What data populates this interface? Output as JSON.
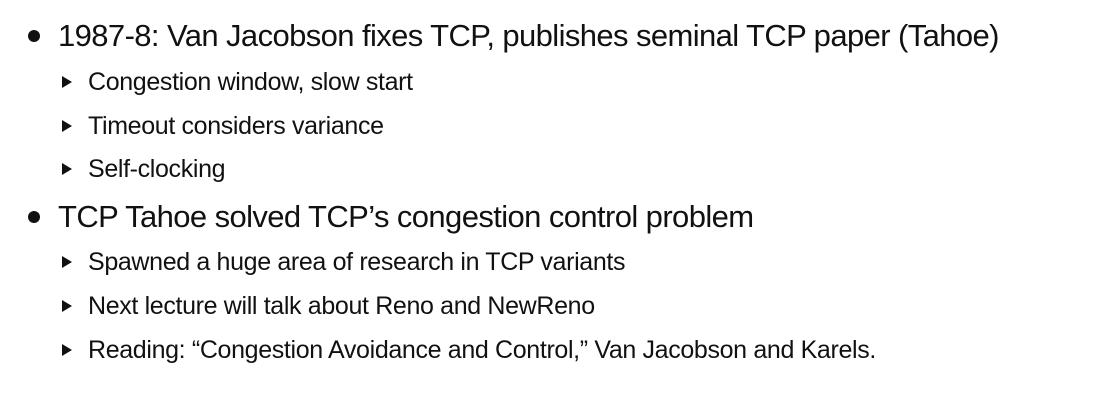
{
  "slide": {
    "bullets": [
      {
        "text": "1987-8: Van Jacobson fixes TCP, publishes seminal TCP paper (Tahoe)",
        "subitems": [
          "Congestion window, slow start",
          "Timeout considers variance",
          "Self-clocking"
        ]
      },
      {
        "text": "TCP Tahoe solved TCP’s congestion control problem",
        "subitems": [
          "Spawned a huge area of research in TCP variants",
          "Next lecture will talk about Reno and NewReno",
          "Reading: “Congestion Avoidance and Control,” Van Jacobson and Karels."
        ]
      }
    ],
    "icons": {
      "level1": "disc-bullet-icon",
      "level2": "triangle-bullet-icon"
    }
  }
}
